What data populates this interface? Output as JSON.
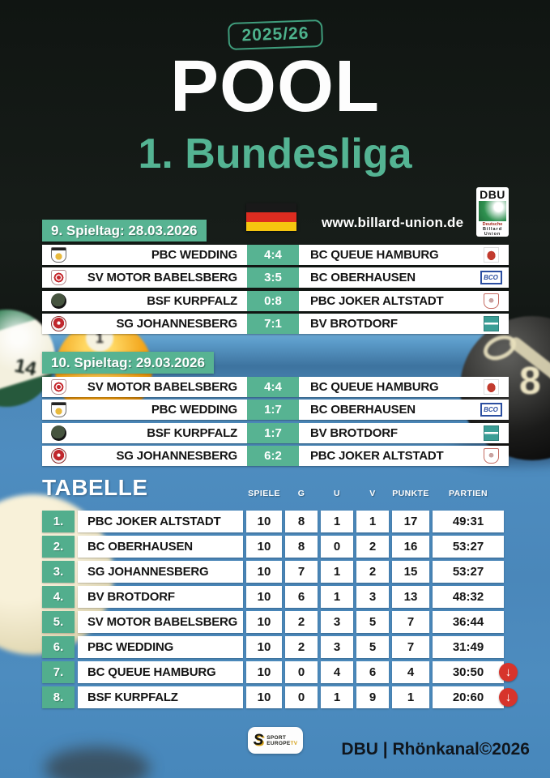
{
  "poster": {
    "season_badge": "2025/26",
    "title": "POOL",
    "subtitle": "1. Bundesliga",
    "website": "www.billard-union.de"
  },
  "dbu_logo": {
    "abbr": "DBU",
    "line1": "Deutsche",
    "line2": "Billard",
    "line3": "Union"
  },
  "matchdays": [
    {
      "label": "9. Spieltag: 28.03.2026",
      "matches": [
        {
          "home": "PBC WEDDING",
          "score": "4:4",
          "away": "BC QUEUE HAMBURG",
          "home_logo": "pbc-wedding",
          "away_logo": "bc-queue-hamburg"
        },
        {
          "home": "SV MOTOR BABELSBERG",
          "score": "3:5",
          "away": "BC OBERHAUSEN",
          "home_logo": "sv-motor-babelsberg",
          "away_logo": "bc-oberhausen"
        },
        {
          "home": "BSF KURPFALZ",
          "score": "0:8",
          "away": "PBC JOKER ALTSTADT",
          "home_logo": "bsf-kurpfalz",
          "away_logo": "pbc-joker-altstadt"
        },
        {
          "home": "SG JOHANNESBERG",
          "score": "7:1",
          "away": "BV BROTDORF",
          "home_logo": "sg-johannesberg",
          "away_logo": "bv-brotdorf"
        }
      ]
    },
    {
      "label": "10. Spieltag: 29.03.2026",
      "matches": [
        {
          "home": "SV MOTOR BABELSBERG",
          "score": "4:4",
          "away": "BC QUEUE HAMBURG",
          "home_logo": "sv-motor-babelsberg",
          "away_logo": "bc-queue-hamburg"
        },
        {
          "home": "PBC WEDDING",
          "score": "1:7",
          "away": "BC OBERHAUSEN",
          "home_logo": "pbc-wedding",
          "away_logo": "bc-oberhausen"
        },
        {
          "home": "BSF KURPFALZ",
          "score": "1:7",
          "away": "BV BROTDORF",
          "home_logo": "bsf-kurpfalz",
          "away_logo": "bv-brotdorf"
        },
        {
          "home": "SG JOHANNESBERG",
          "score": "6:2",
          "away": "PBC JOKER ALTSTADT",
          "home_logo": "sg-johannesberg",
          "away_logo": "pbc-joker-altstadt"
        }
      ]
    }
  ],
  "league_table": {
    "title": "TABELLE",
    "columns": [
      "SPIELE",
      "G",
      "U",
      "V",
      "PUNKTE",
      "PARTIEN"
    ],
    "rows": [
      {
        "pos": "1.",
        "team": "PBC JOKER ALTSTADT",
        "spiele": "10",
        "g": "8",
        "u": "1",
        "v": "1",
        "punkte": "17",
        "partien": "49:31",
        "relegation": false
      },
      {
        "pos": "2.",
        "team": "BC OBERHAUSEN",
        "spiele": "10",
        "g": "8",
        "u": "0",
        "v": "2",
        "punkte": "16",
        "partien": "53:27",
        "relegation": false
      },
      {
        "pos": "3.",
        "team": "SG JOHANNESBERG",
        "spiele": "10",
        "g": "7",
        "u": "1",
        "v": "2",
        "punkte": "15",
        "partien": "53:27",
        "relegation": false
      },
      {
        "pos": "4.",
        "team": "BV BROTDORF",
        "spiele": "10",
        "g": "6",
        "u": "1",
        "v": "3",
        "punkte": "13",
        "partien": "48:32",
        "relegation": false
      },
      {
        "pos": "5.",
        "team": "SV MOTOR BABELSBERG",
        "spiele": "10",
        "g": "2",
        "u": "3",
        "v": "5",
        "punkte": "7",
        "partien": "36:44",
        "relegation": false
      },
      {
        "pos": "6.",
        "team": "PBC WEDDING",
        "spiele": "10",
        "g": "2",
        "u": "3",
        "v": "5",
        "punkte": "7",
        "partien": "31:49",
        "relegation": false
      },
      {
        "pos": "7.",
        "team": "BC QUEUE HAMBURG",
        "spiele": "10",
        "g": "0",
        "u": "4",
        "v": "6",
        "punkte": "4",
        "partien": "30:50",
        "relegation": true
      },
      {
        "pos": "8.",
        "team": "BSF KURPFALZ",
        "spiele": "10",
        "g": "0",
        "u": "1",
        "v": "9",
        "punkte": "1",
        "partien": "20:60",
        "relegation": true
      }
    ]
  },
  "logos": {
    "bco_text": "BCO"
  },
  "decor": {
    "ball_14": "14",
    "ball_1": "1",
    "ball_8": "8",
    "flag": "german-flag",
    "relegation_icon": "red-down-arrow"
  },
  "footer": {
    "credit": "DBU | Rhönkanal©2026",
    "broadcaster": {
      "s": "S",
      "line1": "SPORT",
      "line2": "EUROPE",
      "tv": "TV"
    }
  },
  "colors": {
    "accent_green": "#57b392",
    "table_blue": "#4d8abc",
    "relegation_red": "#d7342c",
    "dark_bg": "#141916"
  }
}
